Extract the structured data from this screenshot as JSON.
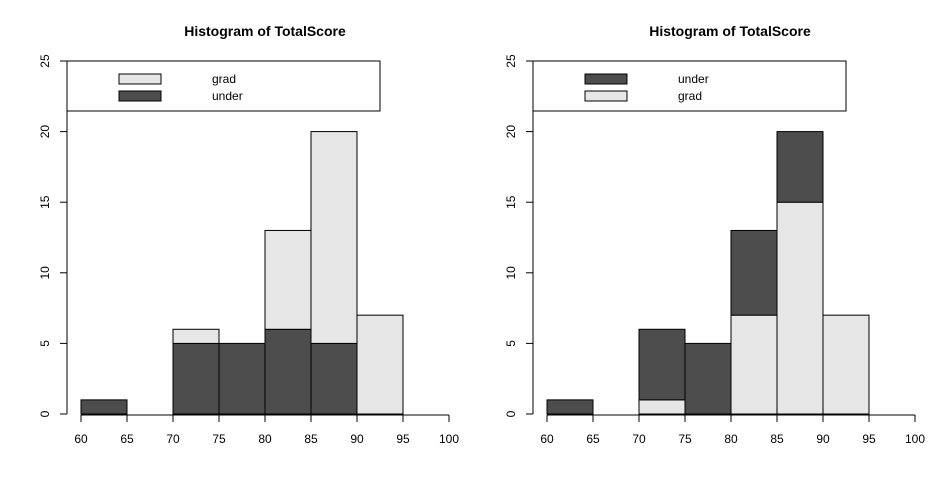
{
  "chart_data": [
    {
      "type": "bar",
      "subtype": "stacked-histogram",
      "title": "Histogram of TotalScore",
      "xlabel": "",
      "ylabel": "",
      "bin_edges": [
        60,
        65,
        70,
        75,
        80,
        85,
        90,
        95
      ],
      "x_ticks": [
        60,
        65,
        70,
        75,
        80,
        85,
        90,
        95,
        100
      ],
      "y_ticks": [
        0,
        5,
        10,
        15,
        20,
        25
      ],
      "xlim": [
        60,
        100
      ],
      "ylim": [
        0,
        25
      ],
      "stack_order": [
        "under",
        "grad"
      ],
      "series": [
        {
          "name": "grad",
          "color": "#e6e6e6",
          "values": [
            0,
            0,
            1,
            0,
            7,
            15,
            7
          ]
        },
        {
          "name": "under",
          "color": "#4d4d4d",
          "values": [
            1,
            0,
            5,
            5,
            6,
            5,
            0
          ]
        }
      ],
      "legend": {
        "placement": "top",
        "order": [
          "grad",
          "under"
        ]
      },
      "grid": false
    },
    {
      "type": "bar",
      "subtype": "stacked-histogram",
      "title": "Histogram of TotalScore",
      "xlabel": "",
      "ylabel": "",
      "bin_edges": [
        60,
        65,
        70,
        75,
        80,
        85,
        90,
        95
      ],
      "x_ticks": [
        60,
        65,
        70,
        75,
        80,
        85,
        90,
        95,
        100
      ],
      "y_ticks": [
        0,
        5,
        10,
        15,
        20,
        25
      ],
      "xlim": [
        60,
        100
      ],
      "ylim": [
        0,
        25
      ],
      "stack_order": [
        "grad",
        "under"
      ],
      "series": [
        {
          "name": "under",
          "color": "#4d4d4d",
          "values": [
            1,
            0,
            5,
            5,
            6,
            5,
            0
          ]
        },
        {
          "name": "grad",
          "color": "#e6e6e6",
          "values": [
            0,
            0,
            1,
            0,
            7,
            15,
            7
          ]
        }
      ],
      "legend": {
        "placement": "top",
        "order": [
          "under",
          "grad"
        ]
      },
      "grid": false
    }
  ]
}
